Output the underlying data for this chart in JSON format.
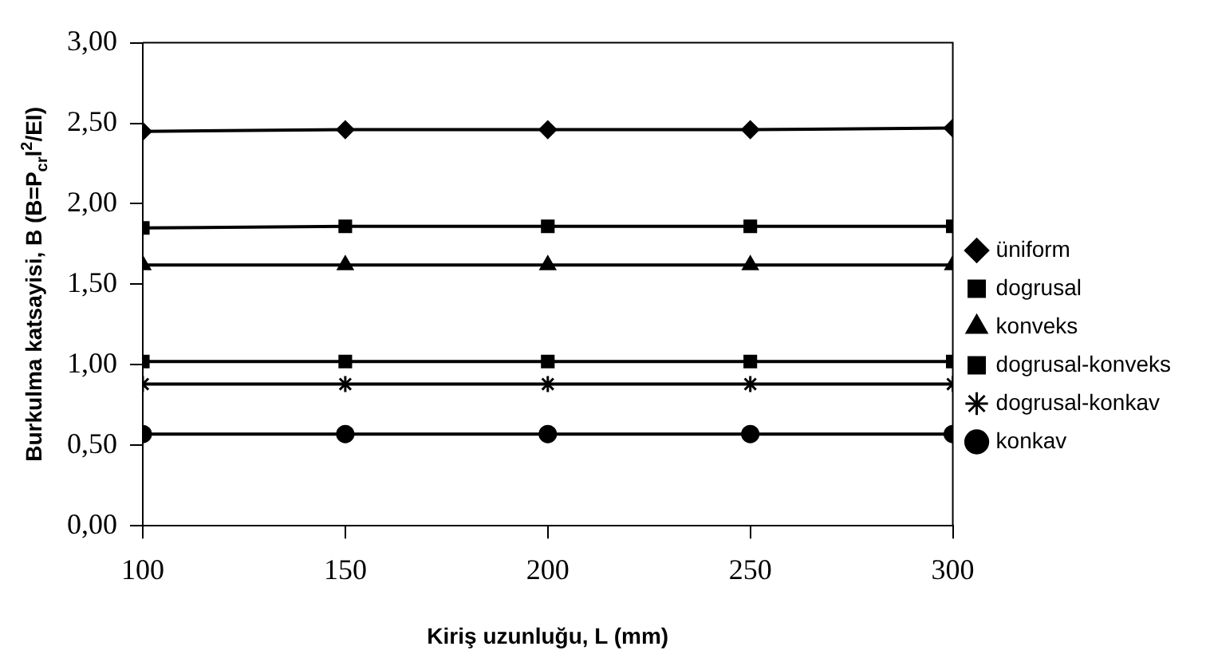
{
  "chart_data": {
    "type": "line",
    "xlabel": "Kiriş uzunluğu, L (mm)",
    "ylabel": "Burkulma katsayisi, B (B=P$_{cr}$l$^{2}$/EI)",
    "x": [
      100,
      150,
      200,
      250,
      300
    ],
    "series": [
      {
        "name": "üniform",
        "color": "#000000",
        "marker": "diamond",
        "values": [
          2.45,
          2.46,
          2.46,
          2.46,
          2.47
        ]
      },
      {
        "name": "dogrusal",
        "color": "#000000",
        "marker": "square",
        "values": [
          1.02,
          1.02,
          1.02,
          1.02,
          1.02
        ]
      },
      {
        "name": "konveks",
        "color": "#000000",
        "marker": "triangle",
        "values": [
          1.62,
          1.62,
          1.62,
          1.62,
          1.62
        ]
      },
      {
        "name": "dogrusal-konveks",
        "color": "#000000",
        "marker": "square",
        "values": [
          1.85,
          1.86,
          1.86,
          1.86,
          1.86
        ]
      },
      {
        "name": "dogrusal-konkav",
        "color": "#000000",
        "marker": "cross",
        "values": [
          0.88,
          0.88,
          0.88,
          0.88,
          0.88
        ]
      },
      {
        "name": "konkav",
        "color": "#000000",
        "marker": "circle",
        "values": [
          0.57,
          0.57,
          0.57,
          0.57,
          0.57
        ]
      }
    ],
    "xlim": [
      100,
      300
    ],
    "xticks": [
      100,
      150,
      200,
      250,
      300
    ],
    "ylim": [
      0,
      3
    ],
    "yticks": [
      {
        "value": 0,
        "label": "0,00"
      },
      {
        "value": 0.5,
        "label": "0,50"
      },
      {
        "value": 1,
        "label": "1,00"
      },
      {
        "value": 1.5,
        "label": "1,50"
      },
      {
        "value": 2,
        "label": "2,00"
      },
      {
        "value": 2.5,
        "label": "2,50"
      },
      {
        "value": 3,
        "label": "3,00"
      }
    ],
    "grid": false,
    "legend": "right",
    "line_style": "solid"
  }
}
